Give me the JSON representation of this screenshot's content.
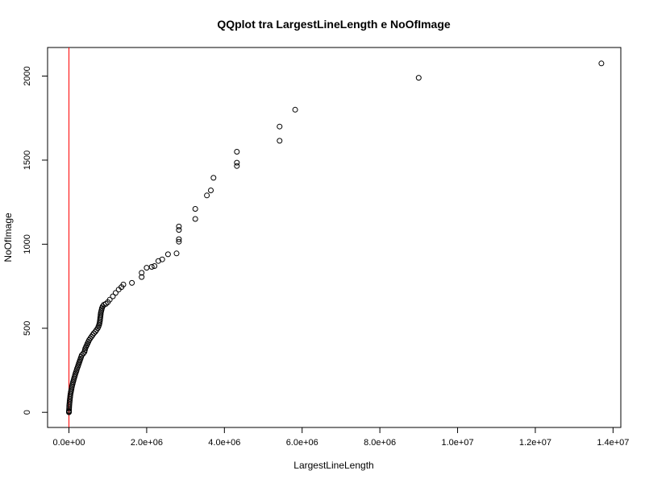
{
  "chart_data": {
    "type": "scatter",
    "title": "QQplot tra LargestLineLength e NoOfImage",
    "xlabel": "LargestLineLength",
    "ylabel": "NoOfImage",
    "xlim": [
      -550000,
      14200000
    ],
    "ylim": [
      -90,
      2170
    ],
    "x_ticks": [
      0,
      2000000,
      4000000,
      6000000,
      8000000,
      10000000,
      12000000,
      14000000
    ],
    "x_tick_labels": [
      "0.0e+00",
      "2.0e+06",
      "4.0e+06",
      "6.0e+06",
      "8.0e+06",
      "1.0e+07",
      "1.2e+07",
      "1.4e+07"
    ],
    "y_ticks": [
      0,
      500,
      1000,
      1500,
      2000
    ],
    "y_tick_labels": [
      "0",
      "500",
      "1000",
      "1500",
      "2000"
    ],
    "grid": false,
    "reference_line": {
      "type": "vertical",
      "x": 0,
      "color": "#ff0000"
    },
    "marker": "open-circle",
    "point_color": "#000000",
    "points": [
      [
        0,
        0
      ],
      [
        0,
        5
      ],
      [
        2000,
        10
      ],
      [
        4000,
        20
      ],
      [
        6000,
        30
      ],
      [
        9000,
        40
      ],
      [
        12000,
        50
      ],
      [
        16000,
        60
      ],
      [
        20000,
        70
      ],
      [
        25000,
        80
      ],
      [
        30000,
        90
      ],
      [
        36000,
        100
      ],
      [
        42000,
        110
      ],
      [
        50000,
        120
      ],
      [
        58000,
        130
      ],
      [
        66000,
        140
      ],
      [
        75000,
        150
      ],
      [
        85000,
        160
      ],
      [
        95000,
        170
      ],
      [
        106000,
        180
      ],
      [
        118000,
        190
      ],
      [
        130000,
        200
      ],
      [
        142000,
        210
      ],
      [
        155000,
        220
      ],
      [
        168000,
        230
      ],
      [
        182000,
        240
      ],
      [
        196000,
        250
      ],
      [
        210000,
        260
      ],
      [
        225000,
        270
      ],
      [
        240000,
        280
      ],
      [
        255000,
        290
      ],
      [
        270000,
        300
      ],
      [
        285000,
        310
      ],
      [
        300000,
        320
      ],
      [
        315000,
        330
      ],
      [
        330000,
        340
      ],
      [
        370000,
        350
      ],
      [
        400000,
        360
      ],
      [
        410000,
        370
      ],
      [
        420000,
        380
      ],
      [
        440000,
        390
      ],
      [
        460000,
        400
      ],
      [
        480000,
        410
      ],
      [
        500000,
        420
      ],
      [
        520000,
        430
      ],
      [
        550000,
        440
      ],
      [
        580000,
        450
      ],
      [
        610000,
        460
      ],
      [
        640000,
        470
      ],
      [
        680000,
        480
      ],
      [
        710000,
        490
      ],
      [
        740000,
        500
      ],
      [
        760000,
        510
      ],
      [
        775000,
        520
      ],
      [
        785000,
        530
      ],
      [
        795000,
        540
      ],
      [
        800000,
        550
      ],
      [
        805000,
        560
      ],
      [
        810000,
        570
      ],
      [
        815000,
        580
      ],
      [
        820000,
        590
      ],
      [
        830000,
        600
      ],
      [
        840000,
        610
      ],
      [
        850000,
        620
      ],
      [
        870000,
        630
      ],
      [
        900000,
        640
      ],
      [
        950000,
        645
      ],
      [
        1000000,
        655
      ],
      [
        1050000,
        670
      ],
      [
        1130000,
        690
      ],
      [
        1200000,
        710
      ],
      [
        1280000,
        730
      ],
      [
        1350000,
        745
      ],
      [
        1400000,
        760
      ],
      [
        1620000,
        770
      ],
      [
        1870000,
        805
      ],
      [
        1870000,
        830
      ],
      [
        2000000,
        860
      ],
      [
        2130000,
        865
      ],
      [
        2200000,
        870
      ],
      [
        2300000,
        900
      ],
      [
        2400000,
        910
      ],
      [
        2550000,
        940
      ],
      [
        2770000,
        945
      ],
      [
        2830000,
        1015
      ],
      [
        2830000,
        1030
      ],
      [
        2830000,
        1085
      ],
      [
        2830000,
        1105
      ],
      [
        3250000,
        1150
      ],
      [
        3250000,
        1210
      ],
      [
        3550000,
        1290
      ],
      [
        3650000,
        1320
      ],
      [
        3720000,
        1395
      ],
      [
        4320000,
        1465
      ],
      [
        4320000,
        1485
      ],
      [
        4320000,
        1550
      ],
      [
        5420000,
        1615
      ],
      [
        5420000,
        1700
      ],
      [
        5820000,
        1800
      ],
      [
        9000000,
        1990
      ],
      [
        13700000,
        2075
      ]
    ]
  }
}
